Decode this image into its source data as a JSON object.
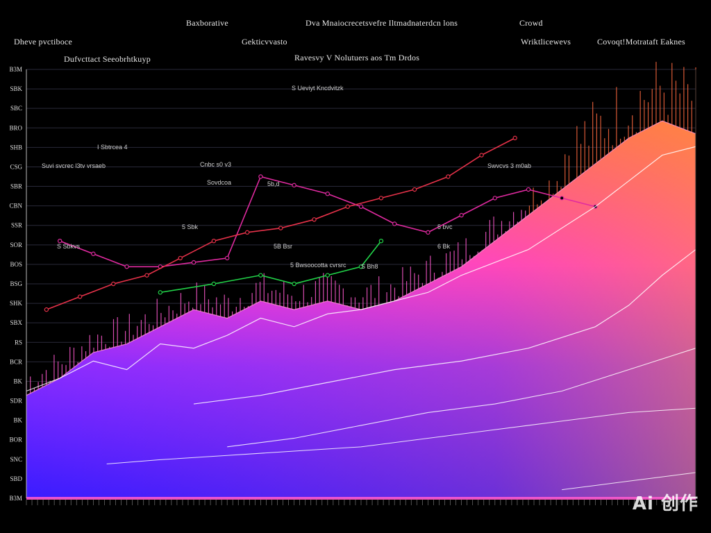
{
  "header": {
    "labels": [
      {
        "text": "Baxborative"
      },
      {
        "text": "Dva Mnaiocrecetsvefre Iltmadnaterdcn lons"
      },
      {
        "text": "Crowd"
      },
      {
        "text": "Dheve pvctiboce"
      },
      {
        "text": "Gekticvvasto"
      },
      {
        "text": "Wriktlicewevs"
      },
      {
        "text": "Covoqt!Motrataft Eaknes"
      },
      {
        "text": "Dufvcttact Seeobrhtkuyp"
      },
      {
        "text": "Ravesvy V Nolutuers aos  Tm Drdos"
      }
    ]
  },
  "chart_data": {
    "type": "area",
    "title": "",
    "xlabel": "",
    "ylabel": "",
    "xlim": [
      0,
      100
    ],
    "ylim": [
      0,
      100
    ],
    "grid": true,
    "y_tick_labels": [
      "B3M",
      "SBK",
      "SBC",
      "BRO",
      "SHB",
      "CSG",
      "SBR",
      "CBN",
      "SSR",
      "SOR",
      "BOS",
      "BSG",
      "SHK",
      "SBX",
      "RS",
      "BCR",
      "BK",
      "SDR",
      "BK",
      "BOR",
      "SNC",
      "SBD",
      "B3M"
    ],
    "annotations": [
      {
        "text": "S Ueviyt Kncdvitzk"
      },
      {
        "text": "I Sbtrcea   4"
      },
      {
        "text": "Suvi svcrec l3tv  vrsaeb"
      },
      {
        "text": "Cnbc s0 v3"
      },
      {
        "text": "Sovdcoa"
      },
      {
        "text": "5b,d"
      },
      {
        "text": "Swvcvs  3 m0ab"
      },
      {
        "text": "S Sbkvs"
      },
      {
        "text": "5 bvc"
      },
      {
        "text": "5 Sbk"
      },
      {
        "text": "5B Bsr"
      },
      {
        "text": "6 Bk"
      },
      {
        "text": "S Bh8"
      },
      {
        "text": "5 Bwsoocotta cvrsrc"
      }
    ],
    "series": [
      {
        "values_x": [
          5,
          10,
          15,
          20,
          25,
          30,
          35,
          40,
          45,
          50,
          55,
          60,
          65,
          70,
          75,
          80,
          85
        ],
        "values_y": [
          60,
          57,
          54,
          54,
          55,
          56,
          75,
          73,
          71,
          68,
          64,
          62,
          66,
          70,
          72,
          70,
          68
        ]
      },
      {
        "values_x": [
          3,
          8,
          13,
          18,
          23,
          28,
          33,
          38,
          43,
          48,
          53,
          58,
          63,
          68,
          73
        ],
        "values_y": [
          44,
          47,
          50,
          52,
          56,
          60,
          62,
          63,
          65,
          68,
          70,
          72,
          75,
          80,
          84
        ]
      },
      {
        "values_x": [
          20,
          28,
          35,
          40,
          45,
          50,
          53
        ],
        "values_y": [
          48,
          50,
          52,
          50,
          52,
          54,
          60
        ]
      },
      {
        "values_x": [
          0,
          5,
          10,
          15,
          20,
          25,
          30,
          35,
          40,
          45,
          50,
          55,
          60,
          65,
          70,
          75,
          80,
          85,
          90,
          95,
          100
        ],
        "values_y": [
          25,
          28,
          32,
          30,
          36,
          35,
          38,
          42,
          40,
          43,
          44,
          46,
          48,
          52,
          55,
          58,
          63,
          68,
          74,
          80,
          82
        ]
      },
      {
        "values_x": [
          25,
          35,
          45,
          55,
          65,
          75,
          85,
          90,
          95,
          100
        ],
        "values_y": [
          22,
          24,
          27,
          30,
          32,
          35,
          40,
          45,
          52,
          58
        ]
      },
      {
        "values_x": [
          30,
          40,
          50,
          60,
          70,
          80,
          90,
          100
        ],
        "values_y": [
          12,
          14,
          17,
          20,
          22,
          25,
          30,
          35
        ]
      },
      {
        "values_x": [
          12,
          20,
          30,
          40,
          50,
          60,
          70,
          80,
          90,
          100
        ],
        "values_y": [
          8,
          9,
          10,
          11,
          12,
          14,
          16,
          18,
          20,
          21
        ]
      },
      {
        "values_x": [
          80,
          85,
          90,
          95,
          100
        ],
        "values_y": [
          2,
          3,
          4,
          5,
          6
        ]
      }
    ],
    "area": {
      "x": [
        0,
        5,
        10,
        15,
        20,
        25,
        30,
        35,
        40,
        45,
        50,
        55,
        60,
        65,
        70,
        75,
        80,
        85,
        90,
        95,
        100
      ],
      "y": [
        24,
        28,
        34,
        36,
        40,
        44,
        42,
        46,
        44,
        46,
        44,
        46,
        50,
        54,
        60,
        66,
        72,
        78,
        84,
        88,
        85
      ]
    }
  },
  "watermark": "Ai 创作",
  "colors": {
    "background": "#000000",
    "area_bottom": "#3a1cff",
    "area_mid": "#ff3cd8",
    "area_top": "#ff7a45",
    "line_red": "#e8324a",
    "line_magenta": "#e02aa0",
    "line_green": "#22d64a",
    "line_white": "#ffffff"
  }
}
